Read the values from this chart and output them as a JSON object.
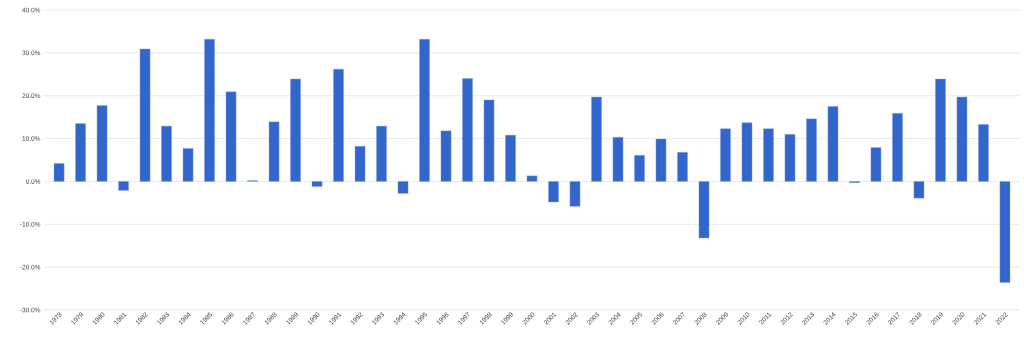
{
  "chart_data": {
    "type": "bar",
    "categories": [
      "1978",
      "1979",
      "1980",
      "1981",
      "1982",
      "1983",
      "1984",
      "1985",
      "1986",
      "1987",
      "1988",
      "1989",
      "1990",
      "1991",
      "1992",
      "1993",
      "1994",
      "1995",
      "1996",
      "1997",
      "1998",
      "1999",
      "2000",
      "2001",
      "2002",
      "2003",
      "2004",
      "2005",
      "2006",
      "2007",
      "2008",
      "2009",
      "2010",
      "2011",
      "2012",
      "2013",
      "2014",
      "2015",
      "2016",
      "2017",
      "2018",
      "2019",
      "2020",
      "2021",
      "2022"
    ],
    "values": [
      4.2,
      13.5,
      17.7,
      -2.1,
      30.9,
      12.9,
      7.7,
      33.2,
      20.9,
      0.2,
      13.9,
      23.9,
      -1.2,
      26.2,
      8.2,
      12.9,
      -2.8,
      33.2,
      11.8,
      24.0,
      19.0,
      10.8,
      1.3,
      -4.8,
      -5.8,
      19.7,
      10.3,
      6.1,
      9.9,
      6.8,
      -13.2,
      12.3,
      13.7,
      12.3,
      11.0,
      14.6,
      17.5,
      -0.3,
      7.9,
      15.9,
      -3.9,
      23.9,
      19.7,
      13.3,
      -23.6
    ],
    "color": "#3366cc",
    "ylim": [
      -30,
      40
    ],
    "yticks": [
      {
        "value": -30,
        "label": "-30.0%"
      },
      {
        "value": -20,
        "label": "-20.0%"
      },
      {
        "value": -10,
        "label": "-10.0%"
      },
      {
        "value": 0,
        "label": "0.0%"
      },
      {
        "value": 10,
        "label": "10.0%"
      },
      {
        "value": 20,
        "label": "20.0%"
      },
      {
        "value": 30,
        "label": "30.0%"
      },
      {
        "value": 40,
        "label": "40.0%"
      }
    ],
    "grid": "y"
  }
}
